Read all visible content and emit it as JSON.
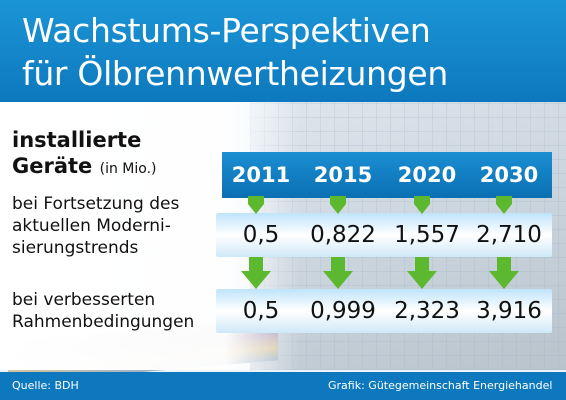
{
  "header": {
    "title_line1": "Wachstums-Perspektiven",
    "title_line2": "für Ölbrennwertheizungen"
  },
  "left_labels": {
    "heading_line1": "installierte",
    "heading_line2": "Geräte",
    "unit": "(in Mio.)",
    "row1_line1": "bei Fortsetzung des",
    "row1_line2": "aktuellen Moderni-",
    "row1_line3": "sierungstrends",
    "row2_line1": "bei verbesserten",
    "row2_line2": "Rahmenbedingungen"
  },
  "footer": {
    "source": "Quelle: BDH",
    "credit": "Grafik: Gütegemeinschaft Energiehandel"
  },
  "colors": {
    "header_blue": "#0d78bd",
    "arrow_green": "#5cb82e"
  },
  "chart_data": {
    "type": "table",
    "title": "Wachstums-Perspektiven für Ölbrennwertheizungen",
    "unit": "(in Mio.)",
    "columns": [
      "2011",
      "2015",
      "2020",
      "2030"
    ],
    "rows": [
      {
        "label": "bei Fortsetzung des aktuellen Modernisierungstrends",
        "values": [
          "0,5",
          "0,822",
          "1,557",
          "2,710"
        ]
      },
      {
        "label": "bei verbesserten Rahmenbedingungen",
        "values": [
          "0,5",
          "0,999",
          "2,323",
          "3,916"
        ]
      }
    ]
  }
}
